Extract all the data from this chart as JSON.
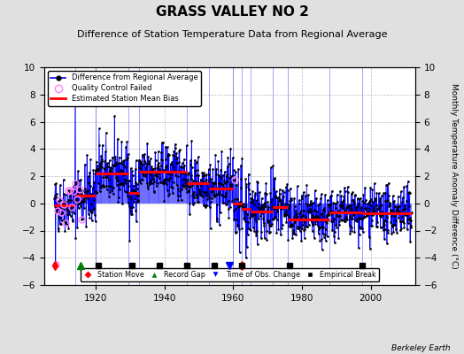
{
  "title": "GRASS VALLEY NO 2",
  "subtitle": "Difference of Station Temperature Data from Regional Average",
  "ylabel_right": "Monthly Temperature Anomaly Difference (°C)",
  "ylim": [
    -6,
    10
  ],
  "xlim": [
    1905,
    2013
  ],
  "yticks": [
    -6,
    -4,
    -2,
    0,
    2,
    4,
    6,
    8,
    10
  ],
  "xticks": [
    1920,
    1940,
    1960,
    1980,
    2000
  ],
  "background_color": "#e0e0e0",
  "plot_bg_color": "#ffffff",
  "grid_color": "#bbbbbb",
  "title_fontsize": 11,
  "subtitle_fontsize": 8,
  "berkeley_earth_text": "Berkeley Earth",
  "seed": 42,
  "segments": [
    {
      "x_start": 1908.0,
      "x_end": 1914.2,
      "mean": -0.1,
      "std": 1.0,
      "bias": -0.15
    },
    {
      "x_start": 1914.2,
      "x_end": 1920.0,
      "mean": 0.6,
      "std": 1.2,
      "bias": 0.55
    },
    {
      "x_start": 1920.0,
      "x_end": 1929.5,
      "mean": 2.2,
      "std": 1.1,
      "bias": 2.2
    },
    {
      "x_start": 1929.5,
      "x_end": 1932.5,
      "mean": 0.8,
      "std": 1.1,
      "bias": 0.75
    },
    {
      "x_start": 1932.5,
      "x_end": 1946.5,
      "mean": 2.3,
      "std": 1.0,
      "bias": 2.3
    },
    {
      "x_start": 1946.5,
      "x_end": 1953.0,
      "mean": 1.5,
      "std": 1.0,
      "bias": 1.5
    },
    {
      "x_start": 1953.0,
      "x_end": 1960.0,
      "mean": 1.1,
      "std": 1.2,
      "bias": 1.1
    },
    {
      "x_start": 1960.0,
      "x_end": 1962.5,
      "mean": 0.2,
      "std": 1.4,
      "bias": 0.0
    },
    {
      "x_start": 1962.5,
      "x_end": 1965.0,
      "mean": -0.3,
      "std": 1.4,
      "bias": -0.4
    },
    {
      "x_start": 1965.0,
      "x_end": 1971.5,
      "mean": -0.5,
      "std": 1.2,
      "bias": -0.6
    },
    {
      "x_start": 1971.5,
      "x_end": 1976.0,
      "mean": -0.3,
      "std": 1.2,
      "bias": -0.3
    },
    {
      "x_start": 1976.0,
      "x_end": 1988.0,
      "mean": -1.2,
      "std": 1.0,
      "bias": -1.2
    },
    {
      "x_start": 1988.0,
      "x_end": 1997.5,
      "mean": -0.7,
      "std": 0.9,
      "bias": -0.65
    },
    {
      "x_start": 1997.5,
      "x_end": 2012.0,
      "mean": -0.7,
      "std": 0.9,
      "bias": -0.7
    }
  ],
  "break_vlines": [
    1914.2,
    1920.0,
    1929.5,
    1932.5,
    1946.5,
    1953.0,
    1960.0,
    1962.5,
    1965.0,
    1971.5,
    1976.0,
    1988.0,
    1997.5
  ],
  "qc_failed_x": [
    1908.3,
    1908.8,
    1909.4,
    1910.0,
    1910.7,
    1911.2,
    1911.9,
    1912.5,
    1913.1,
    1913.6,
    1914.1,
    1914.7,
    1915.3,
    1916.0,
    1960.5
  ],
  "station_moves": [
    1908.2,
    1962.5
  ],
  "record_gaps": [
    1915.5
  ],
  "time_of_obs_changes": [
    1959.0
  ],
  "empirical_breaks_x": [
    1920.8,
    1930.5,
    1938.5,
    1946.5,
    1954.5,
    1962.5,
    1976.5,
    1997.5
  ],
  "spike_at_1914": 7.5,
  "spike_at_1921": 5.5,
  "spike_down_1908": -4.5,
  "spike_down_2012": -2.8,
  "marker_y": -4.6
}
